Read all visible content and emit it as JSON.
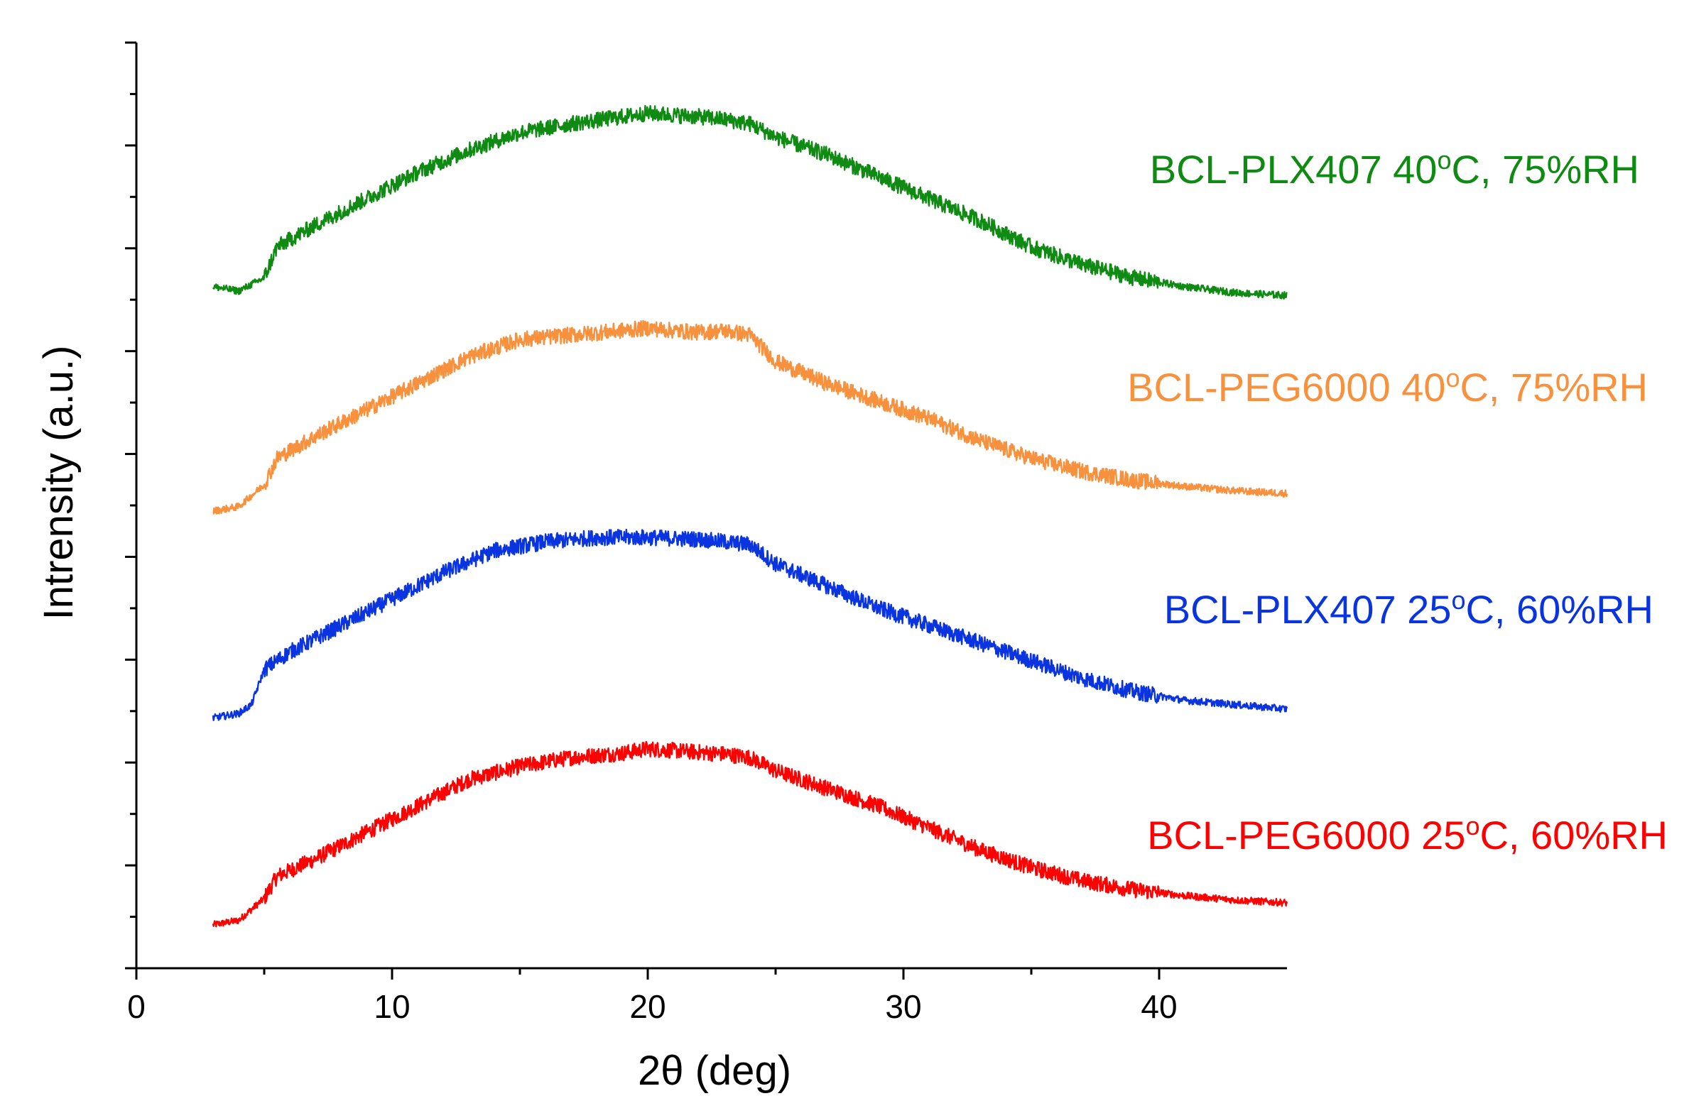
{
  "chart_data": {
    "type": "line",
    "title": "",
    "xlabel": "2θ (deg)",
    "ylabel": "Intrensity (a.u.)",
    "xlim": [
      0,
      45
    ],
    "ylim": [
      0,
      1
    ],
    "xticks": [
      0,
      10,
      20,
      30,
      40
    ],
    "xtick_labels": [
      "0",
      "10",
      "20",
      "30",
      "40"
    ],
    "yticks_unlabeled": true,
    "grid": false,
    "legend": "inline labels at right of each curve",
    "series": [
      {
        "name": "BCL-PEG6000 25°C, 60%RH",
        "label_main": "BCL-PEG6000 25",
        "label_sup": "o",
        "label_tail": "C, 60%RH",
        "color": "#ff0000",
        "x": [
          3,
          4,
          5,
          5.5,
          7,
          9,
          11,
          13,
          15,
          17,
          19,
          20,
          21,
          22,
          23,
          24,
          25,
          27,
          29,
          31,
          33,
          35,
          37,
          39,
          41,
          43,
          45
        ],
        "y": [
          0.03,
          0.035,
          0.06,
          0.085,
          0.105,
          0.135,
          0.165,
          0.195,
          0.21,
          0.22,
          0.225,
          0.23,
          0.228,
          0.226,
          0.224,
          0.22,
          0.205,
          0.185,
          0.165,
          0.14,
          0.115,
          0.095,
          0.08,
          0.07,
          0.063,
          0.058,
          0.055
        ]
      },
      {
        "name": "BCL-PLX407 25°C, 60%RH",
        "label_main": "BCL-PLX407 25",
        "label_sup": "o",
        "label_tail": "C, 60%RH",
        "color": "#0a34e0",
        "x": [
          3,
          4,
          4.5,
          5,
          6,
          8,
          10,
          12,
          14,
          16,
          18,
          20,
          22,
          24,
          25,
          27,
          29,
          31,
          33,
          35,
          37,
          39,
          41,
          43,
          45
        ],
        "y": [
          0.265,
          0.27,
          0.28,
          0.32,
          0.34,
          0.37,
          0.4,
          0.43,
          0.455,
          0.465,
          0.47,
          0.47,
          0.468,
          0.462,
          0.44,
          0.415,
          0.39,
          0.37,
          0.35,
          0.33,
          0.31,
          0.295,
          0.285,
          0.28,
          0.275
        ]
      },
      {
        "name": "BCL-PEG6000 40°C, 75%RH",
        "label_main": "BCL-PEG6000 40",
        "label_sup": "o",
        "label_tail": "C, 75%RH",
        "color": "#f7913e",
        "x": [
          3,
          4,
          5,
          5.5,
          7,
          9,
          11,
          13,
          15,
          17,
          19,
          20,
          21,
          22,
          23,
          24,
          25,
          27,
          29,
          31,
          33,
          35,
          37,
          39,
          41,
          43,
          45
        ],
        "y": [
          0.5,
          0.505,
          0.53,
          0.56,
          0.585,
          0.615,
          0.645,
          0.675,
          0.695,
          0.7,
          0.705,
          0.708,
          0.705,
          0.703,
          0.705,
          0.7,
          0.67,
          0.645,
          0.625,
          0.605,
          0.58,
          0.56,
          0.545,
          0.535,
          0.528,
          0.523,
          0.52
        ]
      },
      {
        "name": "BCL-PLX407 40°C, 75%RH",
        "label_main": "BCL-PLX407 40",
        "label_sup": "o",
        "label_tail": "C, 75%RH",
        "color": "#0f8a12",
        "x": [
          3,
          4,
          5,
          5.5,
          7,
          9,
          11,
          13,
          15,
          17,
          19,
          20,
          21,
          22,
          23,
          24,
          25,
          27,
          29,
          31,
          33,
          35,
          37,
          39,
          41,
          43,
          45
        ],
        "y": [
          0.755,
          0.75,
          0.765,
          0.8,
          0.825,
          0.855,
          0.885,
          0.91,
          0.93,
          0.94,
          0.948,
          0.952,
          0.95,
          0.948,
          0.945,
          0.94,
          0.925,
          0.905,
          0.88,
          0.855,
          0.83,
          0.8,
          0.78,
          0.765,
          0.755,
          0.748,
          0.745
        ]
      }
    ]
  }
}
